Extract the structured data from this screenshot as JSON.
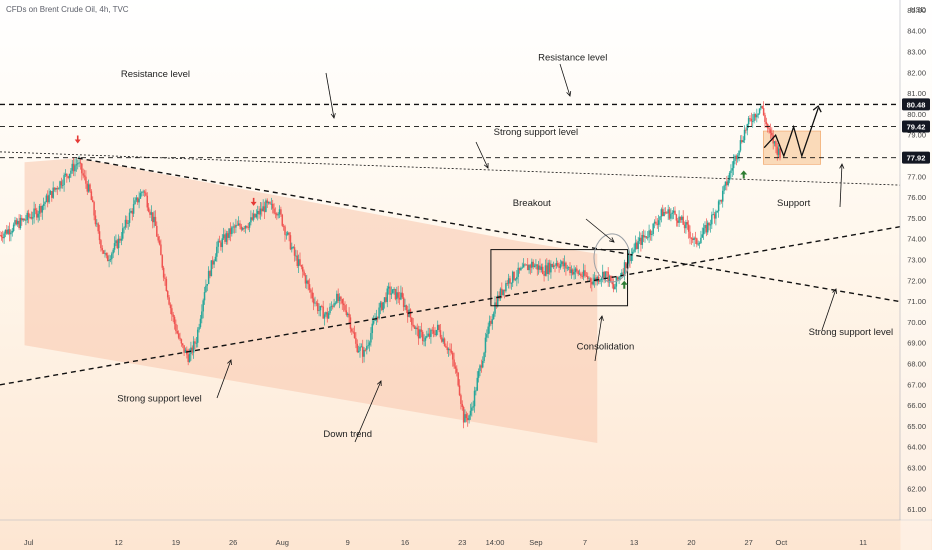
{
  "header": {
    "title": "CFDs on Brent Crude Oil, 4h, TVC"
  },
  "chart_data": {
    "type": "candlestick",
    "title": "CFDs on Brent Crude Oil, 4h, TVC",
    "currency": "USD",
    "ylim": [
      60.5,
      85.5
    ],
    "y_ticks": [
      61,
      62,
      63,
      64,
      65,
      66,
      67,
      68,
      69,
      70,
      71,
      72,
      73,
      74,
      75,
      76,
      77,
      78,
      79,
      80,
      81,
      82,
      83,
      84,
      85
    ],
    "y_tick_labels": [
      "61.00",
      "62.00",
      "63.00",
      "64.00",
      "65.00",
      "66.00",
      "67.00",
      "68.00",
      "69.00",
      "70.00",
      "71.00",
      "72.00",
      "73.00",
      "74.00",
      "75.00",
      "76.00",
      "77.00",
      "78.00",
      "79.00",
      "80.00",
      "81.00",
      "82.00",
      "83.00",
      "84.00",
      "85.00"
    ],
    "x_ticks": [
      {
        "label": "Jul",
        "day": 0
      },
      {
        "label": "12",
        "day": 11
      },
      {
        "label": "19",
        "day": 18
      },
      {
        "label": "26",
        "day": 25
      },
      {
        "label": "Aug",
        "day": 31
      },
      {
        "label": "9",
        "day": 39
      },
      {
        "label": "16",
        "day": 46
      },
      {
        "label": "23",
        "day": 53
      },
      {
        "label": "14:00",
        "day": 57
      },
      {
        "label": "Sep",
        "day": 62
      },
      {
        "label": "7",
        "day": 68
      },
      {
        "label": "13",
        "day": 74
      },
      {
        "label": "20",
        "day": 81
      },
      {
        "label": "27",
        "day": 88
      },
      {
        "label": "Oct",
        "day": 92
      },
      {
        "label": "11",
        "day": 102
      }
    ],
    "x_day_range": [
      -3.5,
      106.5
    ],
    "price_tags": [
      {
        "value": 80.48,
        "label": "80.48",
        "color": "#131722"
      },
      {
        "value": 79.42,
        "label": "79.42",
        "color": "#131722"
      },
      {
        "value": 77.92,
        "label": "77.92",
        "color": "#131722"
      }
    ],
    "path": [
      [
        -3.5,
        74.2
      ],
      [
        1,
        75.3
      ],
      [
        4,
        76.8
      ],
      [
        6,
        77.7
      ],
      [
        7.5,
        76.2
      ],
      [
        8.5,
        74.2
      ],
      [
        9.5,
        73.0
      ],
      [
        11,
        73.9
      ],
      [
        12.5,
        75.3
      ],
      [
        14,
        76.4
      ],
      [
        15.5,
        74.6
      ],
      [
        16.5,
        72.4
      ],
      [
        17.5,
        70.4
      ],
      [
        18.6,
        68.9
      ],
      [
        19.6,
        68.3
      ],
      [
        20.5,
        69.2
      ],
      [
        21.5,
        71.6
      ],
      [
        23,
        73.6
      ],
      [
        25,
        74.5
      ],
      [
        27,
        74.8
      ],
      [
        29,
        75.6
      ],
      [
        30.5,
        75.4
      ],
      [
        31.5,
        74.3
      ],
      [
        32.5,
        73.2
      ],
      [
        33.5,
        72.4
      ],
      [
        34.5,
        71.4
      ],
      [
        35.5,
        70.6
      ],
      [
        36.5,
        70.3
      ],
      [
        37.5,
        71.2
      ],
      [
        39,
        70.5
      ],
      [
        40,
        68.9
      ],
      [
        41,
        68.5
      ],
      [
        42.5,
        70.3
      ],
      [
        44,
        71.5
      ],
      [
        45.5,
        71.2
      ],
      [
        46.5,
        70.4
      ],
      [
        47.5,
        69.5
      ],
      [
        48.5,
        69.2
      ],
      [
        50,
        69.7
      ],
      [
        51.5,
        68.6
      ],
      [
        52.5,
        67.2
      ],
      [
        53.2,
        65.3
      ],
      [
        54,
        65.6
      ],
      [
        55,
        67.5
      ],
      [
        56,
        69.3
      ],
      [
        57,
        70.9
      ],
      [
        58.5,
        72.0
      ],
      [
        60,
        72.4
      ],
      [
        61.5,
        72.8
      ],
      [
        63,
        72.5
      ],
      [
        64.5,
        72.9
      ],
      [
        66,
        72.6
      ],
      [
        67.5,
        72.3
      ],
      [
        69,
        72.0
      ],
      [
        70.5,
        72.4
      ],
      [
        71.5,
        71.6
      ],
      [
        72.5,
        72.5
      ],
      [
        73.5,
        73.2
      ],
      [
        74.5,
        73.8
      ],
      [
        76,
        74.4
      ],
      [
        77.5,
        75.3
      ],
      [
        79,
        75.2
      ],
      [
        80.5,
        74.5
      ],
      [
        81.5,
        73.8
      ],
      [
        82.5,
        74.3
      ],
      [
        83.5,
        75.0
      ],
      [
        84.5,
        75.8
      ],
      [
        85.5,
        76.9
      ],
      [
        86.5,
        78.1
      ],
      [
        87.5,
        79.2
      ],
      [
        88.5,
        79.9
      ],
      [
        89.5,
        80.4
      ],
      [
        90.5,
        79.1
      ],
      [
        91.5,
        78.3
      ],
      [
        92,
        78.1
      ]
    ],
    "overlay_lines": [
      {
        "name": "resistance-top",
        "style": "dashed",
        "value": 80.48,
        "from_day": -3.5,
        "to_day": 106.5,
        "width": 1.4
      },
      {
        "name": "resistance-2",
        "style": "dashed",
        "value": 79.42,
        "from_day": -3.5,
        "to_day": 106.5,
        "width": 0.9
      },
      {
        "name": "support-77",
        "style": "dashed",
        "value": 77.92,
        "from_day": -3.5,
        "to_day": 106.5,
        "width": 0.9
      },
      {
        "name": "down-trendline",
        "style": "dashed",
        "points": [
          [
            6,
            77.9
          ],
          [
            106.5,
            71.0
          ]
        ],
        "width": 1.4
      },
      {
        "name": "up-trendline",
        "style": "dashed",
        "points": [
          [
            -3.5,
            67.0
          ],
          [
            106.5,
            74.6
          ]
        ],
        "width": 1.4
      },
      {
        "name": "thin-support",
        "style": "dotted",
        "points": [
          [
            -3.5,
            78.2
          ],
          [
            106.5,
            76.6
          ]
        ],
        "width": 0.8
      }
    ],
    "annotations": [
      {
        "text": "Resistance level",
        "day": 15.5,
        "value": 81.8
      },
      {
        "text": "Resistance level",
        "day": 66.5,
        "value": 82.6
      },
      {
        "text": "Strong support level",
        "day": 62,
        "value": 79.0
      },
      {
        "text": "Breakout",
        "day": 61.5,
        "value": 75.6
      },
      {
        "text": "Consolidation",
        "day": 70.5,
        "value": 68.7
      },
      {
        "text": "Down trend",
        "day": 39,
        "value": 64.5
      },
      {
        "text": "Strong support level",
        "day": 16,
        "value": 66.2
      },
      {
        "text": "Support",
        "day": 93.5,
        "value": 75.6
      },
      {
        "text": "Strong support level",
        "day": 100.5,
        "value": 69.4
      }
    ]
  }
}
